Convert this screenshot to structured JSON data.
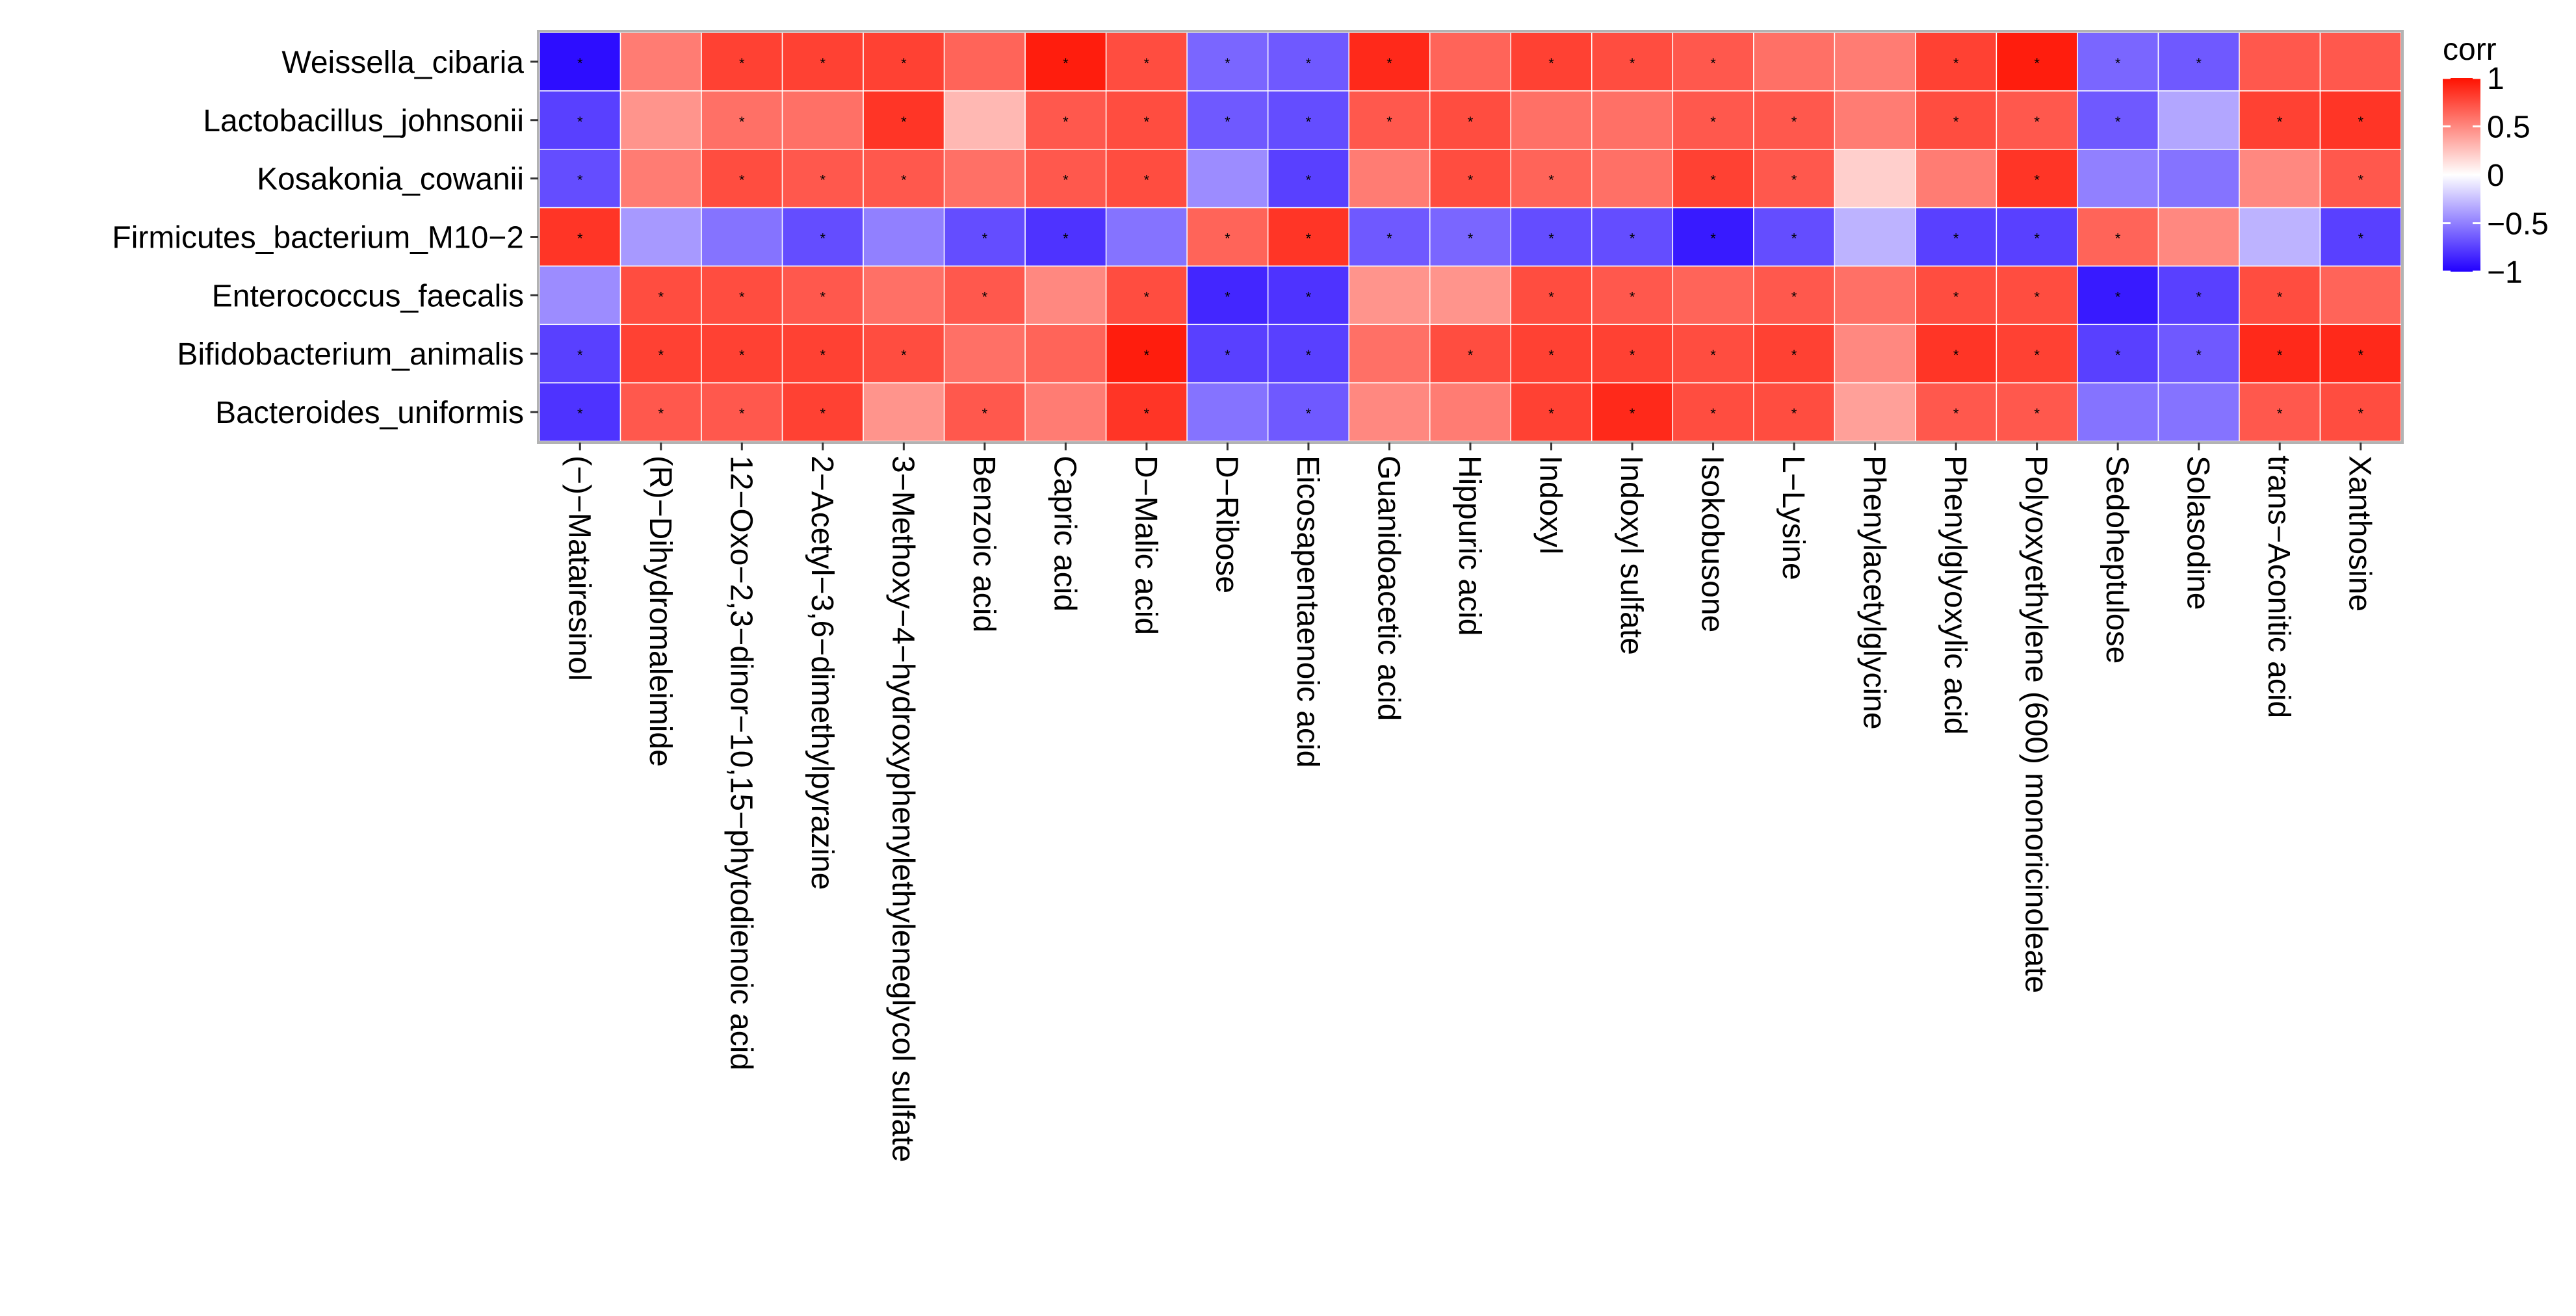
{
  "chart_data": {
    "type": "heatmap",
    "rows": [
      "Weissella_cibaria",
      "Lactobacillus_johnsonii",
      "Kosakonia_cowanii",
      "Firmicutes_bacterium_M10−2",
      "Enterococcus_faecalis",
      "Bifidobacterium_animalis",
      "Bacteroides_uniformis"
    ],
    "columns": [
      "(−)−Matairesinol",
      "(R)−Dihydromaleimide",
      "12−Oxo−2,3−dinor−10,15−phytodienoic acid",
      "2−Acetyl−3,6−dimethylpyrazine",
      "3−Methoxy−4−hydroxyphenylethyleneglycol sulfate",
      "Benzoic acid",
      "Capric acid",
      "D−Malic acid",
      "D−Ribose",
      "Eicosapentaenoic acid",
      "Guanidoacetic acid",
      "Hippuric acid",
      "Indoxyl",
      "Indoxyl sulfate",
      "Isokobusone",
      "L−Lysine",
      "Phenylacetylglycine",
      "Phenylglyoxylic acid",
      "Polyoxyethylene (600) monoricinoleate",
      "Sedoheptulose",
      "Solasodine",
      "trans−Aconitic acid",
      "Xanthosine"
    ],
    "values": [
      [
        -0.95,
        0.55,
        0.8,
        0.8,
        0.8,
        0.65,
        0.95,
        0.75,
        -0.6,
        -0.65,
        0.9,
        0.65,
        0.8,
        0.75,
        0.7,
        0.6,
        0.55,
        0.8,
        0.95,
        -0.6,
        -0.65,
        0.7,
        0.7
      ],
      [
        -0.75,
        0.45,
        0.6,
        0.6,
        0.85,
        0.3,
        0.7,
        0.75,
        -0.65,
        -0.7,
        0.7,
        0.75,
        0.6,
        0.6,
        0.7,
        0.7,
        0.55,
        0.75,
        0.7,
        -0.65,
        -0.35,
        0.8,
        0.85
      ],
      [
        -0.7,
        0.55,
        0.75,
        0.7,
        0.7,
        0.6,
        0.7,
        0.75,
        -0.45,
        -0.75,
        0.55,
        0.75,
        0.65,
        0.6,
        0.8,
        0.7,
        0.2,
        0.55,
        0.85,
        -0.5,
        -0.55,
        0.5,
        0.7
      ],
      [
        0.85,
        -0.4,
        -0.55,
        -0.7,
        -0.5,
        -0.7,
        -0.8,
        -0.55,
        0.65,
        0.85,
        -0.65,
        -0.6,
        -0.7,
        -0.7,
        -0.9,
        -0.7,
        -0.3,
        -0.75,
        -0.75,
        0.65,
        0.5,
        -0.3,
        -0.75
      ],
      [
        -0.45,
        0.75,
        0.75,
        0.7,
        0.6,
        0.7,
        0.5,
        0.75,
        -0.85,
        -0.8,
        0.45,
        0.45,
        0.75,
        0.7,
        0.65,
        0.7,
        0.6,
        0.75,
        0.75,
        -0.9,
        -0.75,
        0.75,
        0.65
      ],
      [
        -0.75,
        0.8,
        0.8,
        0.8,
        0.75,
        0.6,
        0.65,
        0.95,
        -0.75,
        -0.75,
        0.6,
        0.75,
        0.8,
        0.8,
        0.75,
        0.8,
        0.5,
        0.85,
        0.8,
        -0.75,
        -0.65,
        0.9,
        0.9
      ],
      [
        -0.8,
        0.7,
        0.7,
        0.8,
        0.45,
        0.7,
        0.55,
        0.85,
        -0.55,
        -0.65,
        0.5,
        0.55,
        0.8,
        0.9,
        0.75,
        0.75,
        0.4,
        0.7,
        0.7,
        -0.55,
        -0.55,
        0.7,
        0.75
      ]
    ],
    "significant": [
      [
        1,
        0,
        1,
        1,
        1,
        0,
        1,
        1,
        1,
        1,
        1,
        0,
        1,
        1,
        1,
        0,
        0,
        1,
        1,
        1,
        1,
        0,
        0
      ],
      [
        1,
        0,
        1,
        0,
        1,
        0,
        1,
        1,
        1,
        1,
        1,
        1,
        0,
        0,
        1,
        1,
        0,
        1,
        1,
        1,
        0,
        1,
        1
      ],
      [
        1,
        0,
        1,
        1,
        1,
        0,
        1,
        1,
        0,
        1,
        0,
        1,
        1,
        0,
        1,
        1,
        0,
        0,
        1,
        0,
        0,
        0,
        1
      ],
      [
        1,
        0,
        0,
        1,
        0,
        1,
        1,
        0,
        1,
        1,
        1,
        1,
        1,
        1,
        1,
        1,
        0,
        1,
        1,
        1,
        0,
        0,
        1
      ],
      [
        0,
        1,
        1,
        1,
        0,
        1,
        0,
        1,
        1,
        1,
        0,
        0,
        1,
        1,
        0,
        1,
        0,
        1,
        1,
        1,
        1,
        1,
        0
      ],
      [
        1,
        1,
        1,
        1,
        1,
        0,
        0,
        1,
        1,
        1,
        0,
        1,
        1,
        1,
        1,
        1,
        0,
        1,
        1,
        1,
        1,
        1,
        1
      ],
      [
        1,
        1,
        1,
        1,
        0,
        1,
        0,
        1,
        0,
        1,
        0,
        0,
        1,
        1,
        1,
        1,
        0,
        1,
        1,
        0,
        0,
        1,
        1
      ]
    ],
    "significance_symbol": "*",
    "legend": {
      "title": "corr",
      "ticks": [
        "1",
        "0.5",
        "0",
        "−0.5",
        "−1"
      ],
      "tick_values": [
        1,
        0.5,
        0,
        -0.5,
        -1
      ],
      "placement": "right"
    },
    "color_scale": {
      "low": "#2200ff",
      "mid": "#ffffff",
      "high": "#ff1100"
    },
    "zlim": [
      -1,
      1
    ],
    "grid": false
  }
}
